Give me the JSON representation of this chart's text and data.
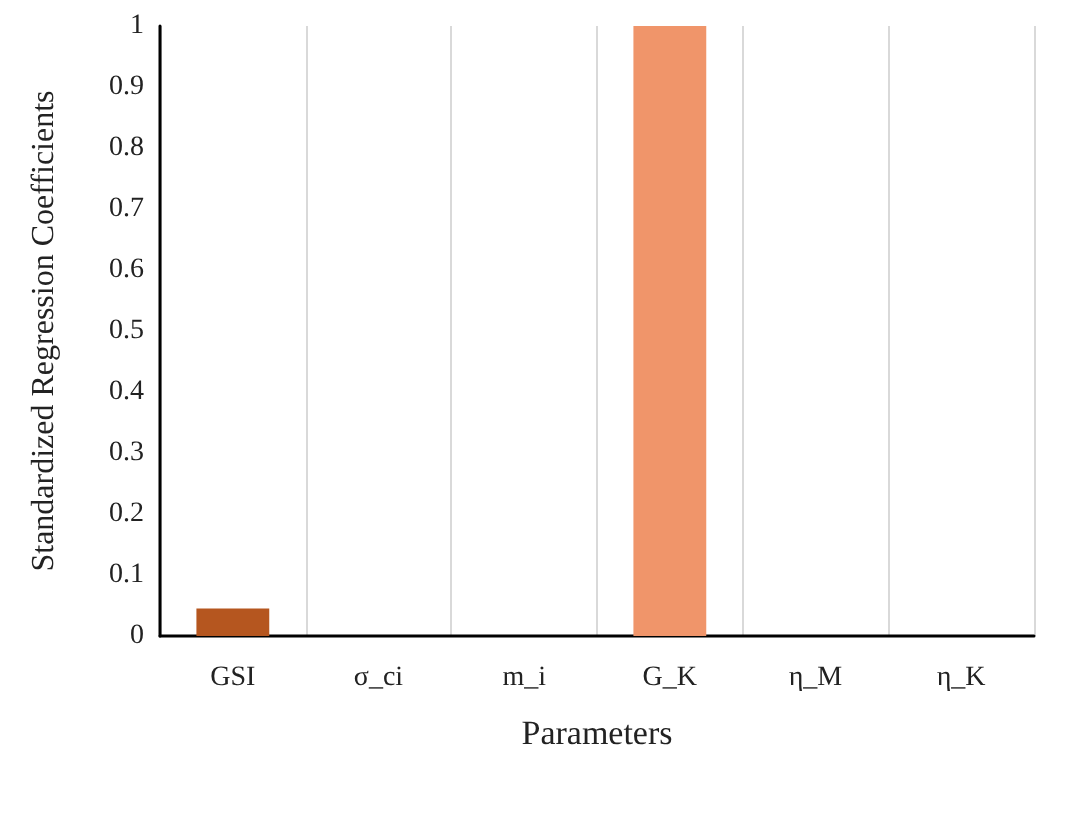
{
  "chart_data": {
    "type": "bar",
    "xlabel": "Parameters",
    "ylabel": "Standardized Regression Coefficients",
    "categories": [
      "GSI",
      "σ_ci",
      "m_i",
      "G_K",
      "η_M",
      "η_K"
    ],
    "values": [
      0.045,
      0,
      0,
      1,
      0,
      0
    ],
    "colors": [
      "#b5561f",
      "#f0956a",
      "#f0956a",
      "#f0956a",
      "#f0956a",
      "#f0956a"
    ],
    "ylim": [
      0,
      1
    ],
    "yticks": [
      0,
      0.1,
      0.2,
      0.3,
      0.4,
      0.5,
      0.6,
      0.7,
      0.8,
      0.9,
      1
    ],
    "grid": "x"
  }
}
